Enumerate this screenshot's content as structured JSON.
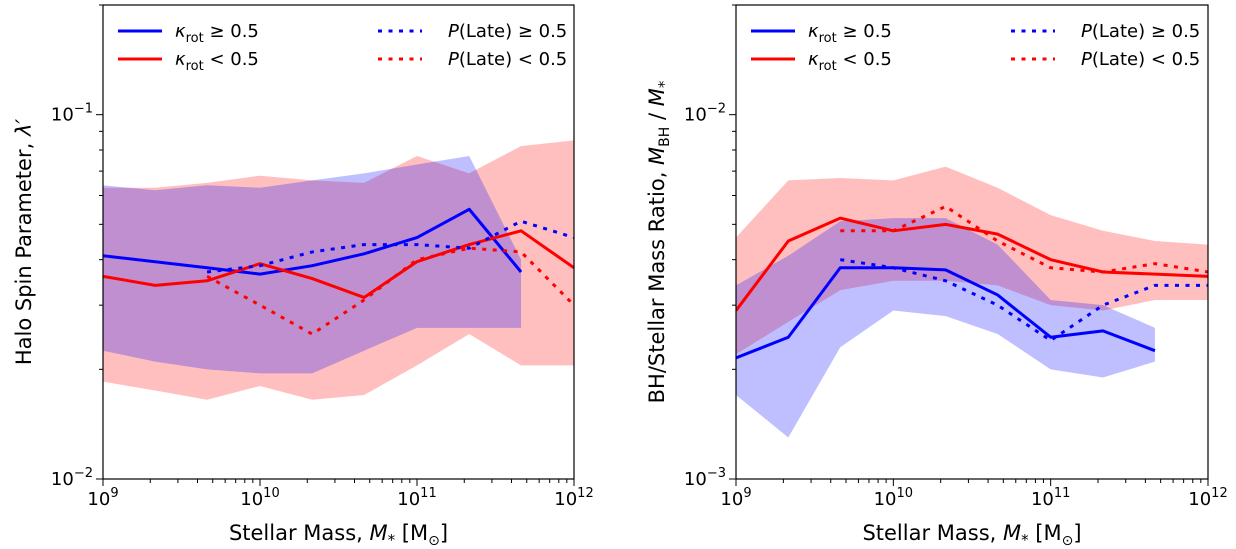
{
  "charts": [
    {
      "type": "line",
      "xscale": "log",
      "yscale": "log",
      "xlim": [
        1000000000.0,
        1000000000000.0
      ],
      "ylim": [
        0.01,
        0.2
      ],
      "xlabel": {
        "main": "Stellar Mass, ",
        "sym": "M",
        "sub": "*",
        "unit": " [M",
        "unitsub": "⊙",
        "close": "]"
      },
      "ylabel": {
        "main": "Halo Spin Parameter, ",
        "sym": "λ′"
      },
      "xticks": [
        {
          "base": "10",
          "exp": "9"
        },
        {
          "base": "10",
          "exp": "10"
        },
        {
          "base": "10",
          "exp": "11"
        },
        {
          "base": "10",
          "exp": "12"
        }
      ],
      "yticks": [
        {
          "base": "10",
          "exp": "−2"
        },
        {
          "base": "10",
          "exp": "−1"
        }
      ],
      "series": [
        {
          "id": "blue-solid",
          "color": "#0000ff",
          "style": "solid",
          "x": [
            1000000000.0,
            4600000000.0,
            10000000000.0,
            21500000000.0,
            46000000000.0,
            100000000000.0,
            215000000000.0,
            460000000000.0
          ],
          "y": [
            0.041,
            0.038,
            0.0365,
            0.0385,
            0.0415,
            0.046,
            0.055,
            0.037
          ]
        },
        {
          "id": "red-solid",
          "color": "#ff0000",
          "style": "solid",
          "x": [
            1000000000.0,
            2150000000.0,
            4600000000.0,
            10000000000.0,
            21500000000.0,
            46000000000.0,
            100000000000.0,
            215000000000.0,
            460000000000.0,
            1000000000000.0
          ],
          "y": [
            0.036,
            0.034,
            0.035,
            0.039,
            0.0355,
            0.0315,
            0.0395,
            0.044,
            0.048,
            0.038
          ]
        },
        {
          "id": "blue-dotted",
          "color": "#0000ff",
          "style": "dotted",
          "x": [
            4600000000.0,
            10000000000.0,
            21500000000.0,
            46000000000.0,
            100000000000.0,
            215000000000.0,
            460000000000.0,
            1000000000000.0
          ],
          "y": [
            0.037,
            0.0385,
            0.042,
            0.044,
            0.044,
            0.043,
            0.051,
            0.046
          ]
        },
        {
          "id": "red-dotted",
          "color": "#ff0000",
          "style": "dotted",
          "x": [
            4600000000.0,
            10000000000.0,
            21500000000.0,
            46000000000.0,
            100000000000.0,
            215000000000.0,
            460000000000.0,
            1000000000000.0
          ],
          "y": [
            0.036,
            0.03,
            0.025,
            0.031,
            0.04,
            0.043,
            0.042,
            0.03
          ]
        }
      ],
      "bands": [
        {
          "id": "red-band",
          "color": "#ff0000",
          "opacity": 0.25,
          "x": [
            1000000000.0,
            2150000000.0,
            4600000000.0,
            10000000000.0,
            21500000000.0,
            46000000000.0,
            100000000000.0,
            215000000000.0,
            460000000000.0,
            1000000000000.0
          ],
          "lo": [
            0.0185,
            0.0175,
            0.0165,
            0.018,
            0.0165,
            0.017,
            0.0205,
            0.025,
            0.0205,
            0.0205
          ],
          "hi": [
            0.063,
            0.063,
            0.065,
            0.068,
            0.066,
            0.065,
            0.077,
            0.069,
            0.082,
            0.085
          ]
        },
        {
          "id": "blue-band",
          "color": "#0000ff",
          "opacity": 0.25,
          "x": [
            1000000000.0,
            2150000000.0,
            4600000000.0,
            10000000000.0,
            21500000000.0,
            46000000000.0,
            100000000000.0,
            215000000000.0,
            460000000000.0
          ],
          "lo": [
            0.0225,
            0.021,
            0.02,
            0.0195,
            0.0195,
            0.0225,
            0.026,
            0.026,
            0.026
          ],
          "hi": [
            0.064,
            0.062,
            0.064,
            0.063,
            0.066,
            0.069,
            0.073,
            0.077,
            0.04
          ]
        }
      ]
    },
    {
      "type": "line",
      "xscale": "log",
      "yscale": "log",
      "xlim": [
        1000000000.0,
        1000000000000.0
      ],
      "ylim": [
        0.001,
        0.02
      ],
      "xlabel": {
        "main": "Stellar Mass, ",
        "sym": "M",
        "sub": "*",
        "unit": " [M",
        "unitsub": "⊙",
        "close": "]"
      },
      "ylabel": {
        "main": "BH/Stellar Mass Ratio, ",
        "sym": "M",
        "sub": "BH",
        "rest": " / ",
        "sym2": "M",
        "sub2": "*"
      },
      "xticks": [
        {
          "base": "10",
          "exp": "9"
        },
        {
          "base": "10",
          "exp": "10"
        },
        {
          "base": "10",
          "exp": "11"
        },
        {
          "base": "10",
          "exp": "12"
        }
      ],
      "yticks": [
        {
          "base": "10",
          "exp": "−3"
        },
        {
          "base": "10",
          "exp": "−2"
        }
      ],
      "series": [
        {
          "id": "blue-solid",
          "color": "#0000ff",
          "style": "solid",
          "x": [
            1000000000.0,
            2150000000.0,
            4600000000.0,
            10000000000.0,
            21500000000.0,
            46000000000.0,
            100000000000.0,
            215000000000.0,
            460000000000.0
          ],
          "y": [
            0.00215,
            0.00245,
            0.0038,
            0.0038,
            0.00375,
            0.0032,
            0.00245,
            0.00255,
            0.00225
          ]
        },
        {
          "id": "red-solid",
          "color": "#ff0000",
          "style": "solid",
          "x": [
            1000000000.0,
            2150000000.0,
            4600000000.0,
            10000000000.0,
            21500000000.0,
            46000000000.0,
            100000000000.0,
            215000000000.0,
            460000000000.0,
            1000000000000.0
          ],
          "y": [
            0.0029,
            0.0045,
            0.0052,
            0.0048,
            0.005,
            0.0047,
            0.004,
            0.0037,
            0.00365,
            0.0036
          ]
        },
        {
          "id": "blue-dotted",
          "color": "#0000ff",
          "style": "dotted",
          "x": [
            4600000000.0,
            10000000000.0,
            21500000000.0,
            46000000000.0,
            100000000000.0,
            215000000000.0,
            460000000000.0,
            1000000000000.0
          ],
          "y": [
            0.004,
            0.0038,
            0.0035,
            0.003,
            0.0024,
            0.003,
            0.0034,
            0.0034
          ]
        },
        {
          "id": "red-dotted",
          "color": "#ff0000",
          "style": "dotted",
          "x": [
            4600000000.0,
            10000000000.0,
            21500000000.0,
            46000000000.0,
            100000000000.0,
            215000000000.0,
            460000000000.0,
            1000000000000.0
          ],
          "y": [
            0.0048,
            0.0048,
            0.0056,
            0.0045,
            0.0038,
            0.0037,
            0.0039,
            0.0037
          ]
        }
      ],
      "bands": [
        {
          "id": "red-band",
          "color": "#ff0000",
          "opacity": 0.25,
          "x": [
            1000000000.0,
            2150000000.0,
            4600000000.0,
            10000000000.0,
            21500000000.0,
            46000000000.0,
            100000000000.0,
            215000000000.0,
            460000000000.0,
            1000000000000.0
          ],
          "lo": [
            0.0022,
            0.0027,
            0.0033,
            0.0035,
            0.0035,
            0.0034,
            0.003,
            0.0029,
            0.0031,
            0.0031
          ],
          "hi": [
            0.0046,
            0.0066,
            0.0067,
            0.0066,
            0.0072,
            0.0063,
            0.0053,
            0.0048,
            0.0045,
            0.0044
          ]
        },
        {
          "id": "blue-band",
          "color": "#0000ff",
          "opacity": 0.25,
          "x": [
            1000000000.0,
            2150000000.0,
            4600000000.0,
            10000000000.0,
            21500000000.0,
            46000000000.0,
            100000000000.0,
            215000000000.0,
            460000000000.0
          ],
          "lo": [
            0.0017,
            0.0013,
            0.0023,
            0.0029,
            0.0028,
            0.0025,
            0.002,
            0.0019,
            0.0021
          ],
          "hi": [
            0.0034,
            0.0041,
            0.0051,
            0.0052,
            0.0052,
            0.0044,
            0.0031,
            0.003,
            0.0026
          ]
        }
      ]
    }
  ],
  "legend": {
    "placement": "top",
    "items": [
      {
        "id": "kappa-ge",
        "color": "#0000ff",
        "style": "solid",
        "sym": "κ",
        "sub": "rot",
        "rest": " ≥ 0.5"
      },
      {
        "id": "kappa-lt",
        "color": "#ff0000",
        "style": "solid",
        "sym": "κ",
        "sub": "rot",
        "rest": " < 0.5"
      },
      {
        "id": "plate-ge",
        "color": "#0000ff",
        "style": "dotted",
        "sym": "P",
        "rest": "(Late) ≥ 0.5"
      },
      {
        "id": "plate-lt",
        "color": "#ff0000",
        "style": "dotted",
        "sym": "P",
        "rest": "(Late) < 0.5"
      }
    ]
  }
}
